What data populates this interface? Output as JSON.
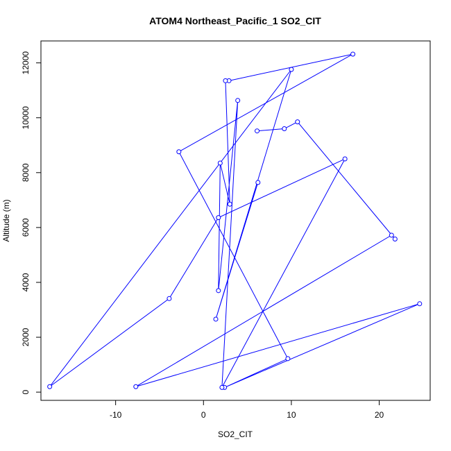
{
  "chart_data": {
    "type": "line",
    "title": "ATOM4 Northeast_Pacific_1 SO2_CIT",
    "xlabel": "SO2_CIT",
    "ylabel": "Altitude (m)",
    "xlim": [
      -18.5,
      25.8
    ],
    "ylim": [
      -300,
      12800
    ],
    "xticks": [
      -10,
      0,
      10,
      20
    ],
    "yticks": [
      0,
      2000,
      4000,
      6000,
      8000,
      10000,
      12000
    ],
    "grid": false,
    "legend": "none",
    "color": "#0000ff",
    "series": [
      {
        "markers": "open-circle",
        "x": [
          6.1,
          9.2,
          10.7,
          21.8,
          21.4,
          -7.7,
          24.6,
          2.4,
          9.6,
          -2.8,
          17.0,
          2.9,
          2.5,
          3.0,
          1.9,
          1.7,
          3.9,
          2.1,
          16.1,
          1.7,
          -3.9,
          -17.5,
          10.0,
          1.4,
          6.2
        ],
        "y": [
          9520,
          9600,
          9850,
          5580,
          5720,
          200,
          3220,
          170,
          1220,
          8760,
          12320,
          11350,
          11350,
          6850,
          8350,
          3700,
          10630,
          170,
          8500,
          6360,
          3410,
          200,
          11760,
          2660,
          7640
        ]
      }
    ]
  }
}
